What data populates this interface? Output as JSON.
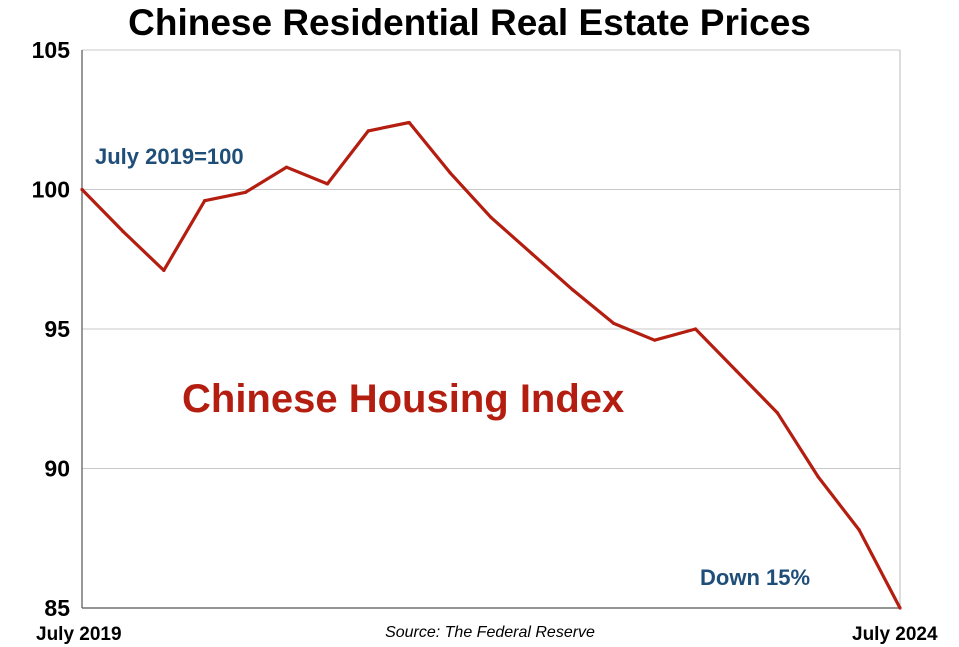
{
  "chart_data": {
    "type": "line",
    "title": "Chinese Residential Real Estate Prices",
    "source": "Source: The Federal Reserve",
    "xlabel": "",
    "ylabel": "",
    "ylim": [
      85,
      105
    ],
    "yticks": [
      "85",
      "90",
      "95",
      "100",
      "105"
    ],
    "xtick_labels": [
      "July 2019",
      "July 2024"
    ],
    "grid": "horizontal",
    "series": [
      {
        "label": "Chinese Housing Index",
        "color": "#b41e10",
        "values": [
          100,
          98.5,
          97.1,
          99.6,
          99.9,
          100.8,
          100.2,
          102.1,
          102.4,
          100.6,
          99.0,
          97.7,
          96.4,
          95.2,
          94.6,
          95.0,
          93.5,
          92.0,
          89.7,
          87.8,
          85.0
        ]
      }
    ],
    "annotations": {
      "baseline_note": "July 2019=100",
      "change_note": "Down 15%"
    }
  }
}
